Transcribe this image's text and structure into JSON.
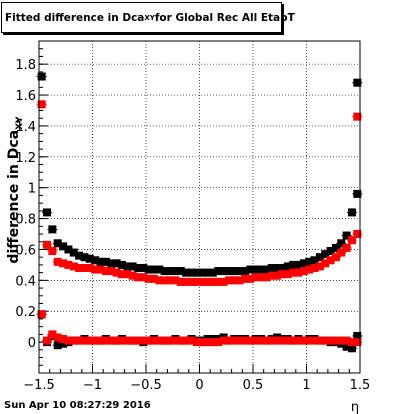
{
  "title": {
    "main": "Fitted difference in Dca",
    "sub": "XY",
    "rest": " for Global Rec All EtapT"
  },
  "ylabel": {
    "main": "difference in Dca",
    "sub": "XY"
  },
  "xlabel": "η",
  "footer": {
    "date": "Sun Apr 10 08:27:29 2016"
  },
  "colors": {
    "series_black": "#000000",
    "series_red": "#ff0000",
    "grid": "#000000"
  },
  "chart_data": {
    "type": "scatter",
    "xlim": [
      -1.5,
      1.5
    ],
    "ylim": [
      -0.2,
      1.95
    ],
    "x_ticks": [
      -1.5,
      -1,
      -0.5,
      0,
      0.5,
      1,
      1.5
    ],
    "x_tick_labels": [
      "−1.5",
      "−1",
      "−0.5",
      "0",
      "0.5",
      "1",
      "1.5"
    ],
    "y_ticks": [
      0,
      0.2,
      0.4,
      0.6,
      0.8,
      1,
      1.2,
      1.4,
      1.6,
      1.8
    ],
    "y_tick_labels": [
      "0",
      "0.2",
      "0.4",
      "0.6",
      "0.8",
      "1",
      "1.2",
      "1.4",
      "1.6",
      "1.8"
    ],
    "grid": true,
    "series": [
      {
        "color": "black",
        "x": [
          -1.475,
          -1.425,
          -1.375,
          -1.325,
          -1.275,
          -1.225,
          -1.175,
          -1.125,
          -1.075,
          -1.025,
          -0.975,
          -0.925,
          -0.875,
          -0.825,
          -0.775,
          -0.725,
          -0.675,
          -0.625,
          -0.575,
          -0.525,
          -0.475,
          -0.425,
          -0.375,
          -0.325,
          -0.275,
          -0.225,
          -0.175,
          -0.125,
          -0.075,
          -0.025,
          0.025,
          0.075,
          0.125,
          0.175,
          0.225,
          0.275,
          0.325,
          0.375,
          0.425,
          0.475,
          0.525,
          0.575,
          0.625,
          0.675,
          0.725,
          0.775,
          0.825,
          0.875,
          0.925,
          0.975,
          1.025,
          1.075,
          1.125,
          1.175,
          1.225,
          1.275,
          1.325,
          1.375,
          1.425,
          1.475
        ],
        "y": [
          1.72,
          0.84,
          0.73,
          0.64,
          0.62,
          0.6,
          0.58,
          0.56,
          0.55,
          0.54,
          0.53,
          0.52,
          0.52,
          0.51,
          0.51,
          0.5,
          0.49,
          0.49,
          0.48,
          0.48,
          0.47,
          0.47,
          0.47,
          0.46,
          0.46,
          0.46,
          0.46,
          0.45,
          0.45,
          0.45,
          0.45,
          0.45,
          0.45,
          0.46,
          0.46,
          0.46,
          0.46,
          0.46,
          0.46,
          0.47,
          0.47,
          0.47,
          0.47,
          0.48,
          0.48,
          0.48,
          0.49,
          0.5,
          0.5,
          0.51,
          0.52,
          0.53,
          0.55,
          0.57,
          0.59,
          0.61,
          0.64,
          0.69,
          0.84,
          0.96
        ],
        "x_extra": [
          1.475
        ],
        "y_extra": [
          1.68
        ]
      },
      {
        "color": "red",
        "x": [
          -1.475,
          -1.425,
          -1.375,
          -1.325,
          -1.275,
          -1.225,
          -1.175,
          -1.125,
          -1.075,
          -1.025,
          -0.975,
          -0.925,
          -0.875,
          -0.825,
          -0.775,
          -0.725,
          -0.675,
          -0.625,
          -0.575,
          -0.525,
          -0.475,
          -0.425,
          -0.375,
          -0.325,
          -0.275,
          -0.225,
          -0.175,
          -0.125,
          -0.075,
          -0.025,
          0.025,
          0.075,
          0.125,
          0.175,
          0.225,
          0.275,
          0.325,
          0.375,
          0.425,
          0.475,
          0.525,
          0.575,
          0.625,
          0.675,
          0.725,
          0.775,
          0.825,
          0.875,
          0.925,
          0.975,
          1.025,
          1.075,
          1.125,
          1.175,
          1.225,
          1.275,
          1.325,
          1.375,
          1.425,
          1.475
        ],
        "y": [
          1.54,
          0.63,
          0.59,
          0.52,
          0.51,
          0.5,
          0.49,
          0.48,
          0.48,
          0.48,
          0.47,
          0.47,
          0.46,
          0.46,
          0.45,
          0.44,
          0.44,
          0.43,
          0.42,
          0.42,
          0.41,
          0.41,
          0.4,
          0.4,
          0.4,
          0.4,
          0.39,
          0.39,
          0.39,
          0.39,
          0.39,
          0.39,
          0.39,
          0.39,
          0.39,
          0.4,
          0.4,
          0.4,
          0.41,
          0.41,
          0.42,
          0.42,
          0.42,
          0.43,
          0.43,
          0.44,
          0.44,
          0.45,
          0.45,
          0.46,
          0.47,
          0.48,
          0.49,
          0.51,
          0.53,
          0.55,
          0.58,
          0.61,
          0.66,
          0.7
        ],
        "x_extra": [
          1.475
        ],
        "y_extra": [
          1.46
        ]
      },
      {
        "color": "black",
        "x": [
          -1.475,
          -1.425,
          -1.375,
          -1.325,
          -1.275,
          -1.225,
          -1.175,
          -1.125,
          -1.075,
          -1.025,
          -0.975,
          -0.925,
          -0.875,
          -0.825,
          -0.775,
          -0.725,
          -0.675,
          -0.625,
          -0.575,
          -0.525,
          -0.475,
          -0.425,
          -0.375,
          -0.325,
          -0.275,
          -0.225,
          -0.175,
          -0.125,
          -0.075,
          -0.025,
          0.025,
          0.075,
          0.125,
          0.175,
          0.225,
          0.275,
          0.325,
          0.375,
          0.425,
          0.475,
          0.525,
          0.575,
          0.625,
          0.675,
          0.725,
          0.775,
          0.825,
          0.875,
          0.925,
          0.975,
          1.025,
          1.075,
          1.125,
          1.175,
          1.225,
          1.275,
          1.325,
          1.375,
          1.425,
          1.475
        ],
        "y": [
          0.18,
          0.0,
          0.04,
          -0.02,
          -0.01,
          0.0,
          0.01,
          0.01,
          0.02,
          0.01,
          0.01,
          0.01,
          0.02,
          0.01,
          0.01,
          0.02,
          0.01,
          0.01,
          0.01,
          0.0,
          0.01,
          0.02,
          0.01,
          0.01,
          0.01,
          0.02,
          0.01,
          0.01,
          0.02,
          0.01,
          0.01,
          0.02,
          0.02,
          0.02,
          0.03,
          0.01,
          0.02,
          0.02,
          0.02,
          0.01,
          0.02,
          0.02,
          0.01,
          0.02,
          0.03,
          0.02,
          0.02,
          0.01,
          0.02,
          0.01,
          0.02,
          0.02,
          0.01,
          0.01,
          0.0,
          0.0,
          -0.01,
          -0.03,
          -0.04,
          0.04
        ]
      },
      {
        "color": "red",
        "x": [
          -1.475,
          -1.425,
          -1.375,
          -1.325,
          -1.275,
          -1.225,
          -1.175,
          -1.125,
          -1.075,
          -1.025,
          -0.975,
          -0.925,
          -0.875,
          -0.825,
          -0.775,
          -0.725,
          -0.675,
          -0.625,
          -0.575,
          -0.525,
          -0.475,
          -0.425,
          -0.375,
          -0.325,
          -0.275,
          -0.225,
          -0.175,
          -0.125,
          -0.075,
          -0.025,
          0.025,
          0.075,
          0.125,
          0.175,
          0.225,
          0.275,
          0.325,
          0.375,
          0.425,
          0.475,
          0.525,
          0.575,
          0.625,
          0.675,
          0.725,
          0.775,
          0.825,
          0.875,
          0.925,
          0.975,
          1.025,
          1.075,
          1.125,
          1.175,
          1.225,
          1.275,
          1.325,
          1.375,
          1.425,
          1.475
        ],
        "y": [
          0.18,
          0.01,
          0.05,
          0.03,
          0.02,
          0.01,
          0.01,
          0.01,
          0.01,
          0.01,
          0.01,
          0.01,
          0.01,
          0.01,
          0.01,
          0.01,
          0.01,
          0.01,
          0.01,
          0.01,
          0.01,
          0.01,
          0.01,
          0.01,
          0.01,
          0.01,
          0.01,
          0.01,
          0.01,
          0.0,
          0.0,
          0.0,
          0.0,
          0.0,
          0.01,
          0.01,
          0.01,
          0.01,
          0.01,
          0.01,
          0.01,
          0.01,
          0.01,
          0.01,
          0.01,
          0.01,
          0.01,
          0.01,
          0.01,
          0.01,
          0.01,
          0.01,
          0.01,
          0.01,
          0.01,
          0.01,
          0.01,
          0.01,
          0.0,
          0.0
        ]
      }
    ]
  }
}
